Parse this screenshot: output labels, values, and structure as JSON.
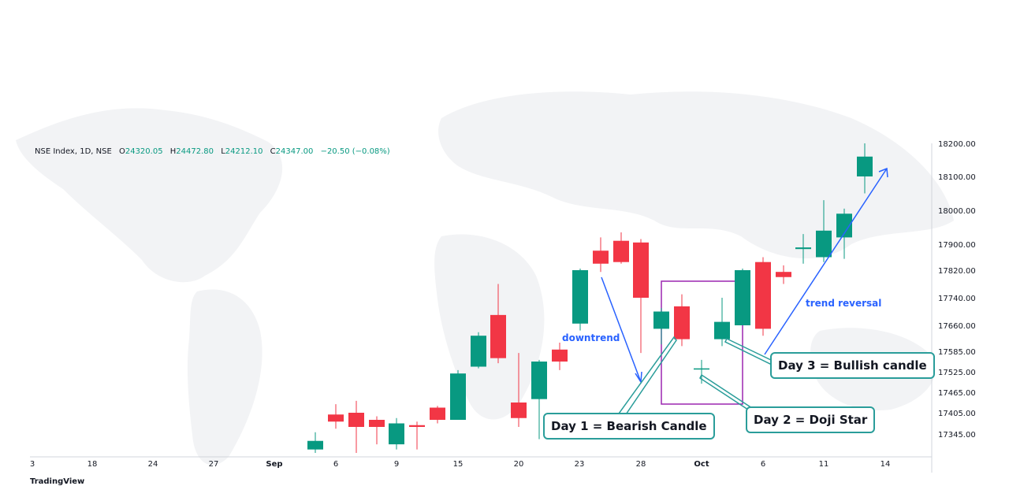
{
  "header": {
    "symbol": "NSE Index, 1D, NSE",
    "o_label": "O",
    "o_value": "24320.05",
    "h_label": "H",
    "h_value": "24472.80",
    "l_label": "L",
    "l_value": "24212.10",
    "c_label": "C",
    "c_value": "24347.00",
    "change": "−20.50 (−0.08%)"
  },
  "brand": "TradingView",
  "annotations": {
    "day1": "Day 1 = Bearish Candle",
    "day2": "Day 2 = Doji Star",
    "day3": "Day 3 = Bullish candle",
    "downtrend": "downtrend",
    "trend_reversal": "trend reversal"
  },
  "colors": {
    "up": "#089981",
    "down": "#f23645",
    "arrow": "#2962ff",
    "box": "#9c27b0",
    "callout": "#2a9d9a"
  },
  "chart_data": {
    "type": "candlestick",
    "x_ticks": [
      "3",
      "18",
      "24",
      "27",
      "Sep",
      "6",
      "9",
      "15",
      "20",
      "23",
      "28",
      "Oct",
      "6",
      "11",
      "14"
    ],
    "y_ticks": [
      17345.0,
      17405.0,
      17465.0,
      17525.0,
      17585.0,
      17660.0,
      17740.0,
      17820.0,
      17900.0,
      18000.0,
      18100.0,
      18200.0
    ],
    "ylim": [
      17290,
      18200
    ],
    "candles": [
      {
        "o": 17300,
        "h": 17350,
        "l": 17290,
        "c": 17325
      },
      {
        "o": 17400,
        "h": 17430,
        "l": 17360,
        "c": 17380
      },
      {
        "o": 17405,
        "h": 17440,
        "l": 17290,
        "c": 17365
      },
      {
        "o": 17385,
        "h": 17395,
        "l": 17315,
        "c": 17365
      },
      {
        "o": 17315,
        "h": 17390,
        "l": 17300,
        "c": 17375
      },
      {
        "o": 17370,
        "h": 17380,
        "l": 17300,
        "c": 17365
      },
      {
        "o": 17420,
        "h": 17425,
        "l": 17375,
        "c": 17385
      },
      {
        "o": 17385,
        "h": 17530,
        "l": 17385,
        "c": 17520
      },
      {
        "o": 17540,
        "h": 17640,
        "l": 17535,
        "c": 17630
      },
      {
        "o": 17690,
        "h": 17780,
        "l": 17550,
        "c": 17565
      },
      {
        "o": 17435,
        "h": 17580,
        "l": 17365,
        "c": 17390
      },
      {
        "o": 17445,
        "h": 17560,
        "l": 17330,
        "c": 17555
      },
      {
        "o": 17590,
        "h": 17610,
        "l": 17530,
        "c": 17555
      },
      {
        "o": 17665,
        "h": 17825,
        "l": 17645,
        "c": 17820
      },
      {
        "o": 17880,
        "h": 17920,
        "l": 17815,
        "c": 17840
      },
      {
        "o": 17910,
        "h": 17935,
        "l": 17840,
        "c": 17845
      },
      {
        "o": 17905,
        "h": 17915,
        "l": 17580,
        "c": 17740
      },
      {
        "o": 17650,
        "h": 17710,
        "l": 17605,
        "c": 17700
      },
      {
        "o": 17715,
        "h": 17750,
        "l": 17600,
        "c": 17620
      },
      {
        "o": 17535,
        "h": 17560,
        "l": 17490,
        "c": 17535
      },
      {
        "o": 17620,
        "h": 17740,
        "l": 17600,
        "c": 17670
      },
      {
        "o": 17660,
        "h": 17825,
        "l": 17660,
        "c": 17820
      },
      {
        "o": 17845,
        "h": 17860,
        "l": 17630,
        "c": 17650
      },
      {
        "o": 17815,
        "h": 17835,
        "l": 17780,
        "c": 17800
      },
      {
        "o": 17885,
        "h": 17930,
        "l": 17840,
        "c": 17890
      },
      {
        "o": 17860,
        "h": 18030,
        "l": 17845,
        "c": 17940
      },
      {
        "o": 17920,
        "h": 18005,
        "l": 17855,
        "c": 17990
      },
      {
        "o": 18100,
        "h": 18200,
        "l": 18050,
        "c": 18160
      }
    ]
  }
}
